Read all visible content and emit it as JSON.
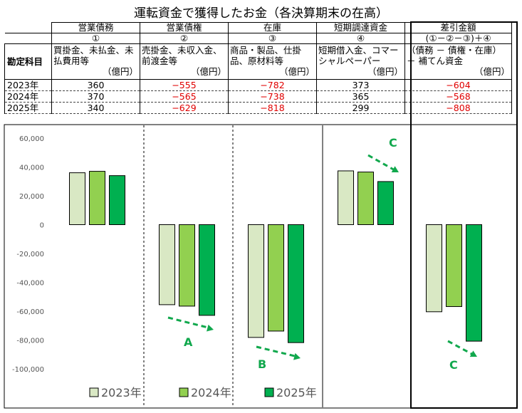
{
  "title": "運転資金で獲得したお金（各決算期末の在高）",
  "table": {
    "row_header": "勘定科目",
    "columns": [
      {
        "name": "営業債務",
        "number": "①",
        "desc": "買掛金、未払金、未払費用等",
        "unit": "（億円）"
      },
      {
        "name": "営業債権",
        "number": "②",
        "desc": "売掛金、未収入金、前渡金等",
        "unit": "（億円）"
      },
      {
        "name": "在庫",
        "number": "③",
        "desc": "商品・製品、仕掛品、原材料等",
        "unit": "（億円）"
      },
      {
        "name": "短期調達資金",
        "number": "④",
        "desc": "短期借入金、コマーシャルペーパー",
        "unit": "（億円）"
      },
      {
        "name": "差引金額",
        "number": "(①－②－③)＋④",
        "desc": "（債務 － 債権・在庫） ＋ 補てん資金",
        "unit": "（億円）"
      }
    ],
    "rows": [
      {
        "year": "2023年",
        "values": [
          "360",
          "−555",
          "−782",
          "373",
          "−604"
        ]
      },
      {
        "year": "2024年",
        "values": [
          "370",
          "−565",
          "−738",
          "365",
          "−568"
        ]
      },
      {
        "year": "2025年",
        "values": [
          "340",
          "−629",
          "−818",
          "299",
          "−808"
        ]
      }
    ]
  },
  "chart_data": {
    "type": "bar",
    "categories": [
      "営業債務",
      "営業債権",
      "在庫",
      "短期調達資金",
      "差引金額"
    ],
    "series": [
      {
        "name": "2023年",
        "color": "#d9e8c4",
        "values": [
          36000,
          -55500,
          -78200,
          37300,
          -60400
        ]
      },
      {
        "name": "2024年",
        "color": "#92d050",
        "values": [
          37000,
          -56500,
          -73800,
          36500,
          -56800
        ]
      },
      {
        "name": "2025年",
        "color": "#00b050",
        "values": [
          34000,
          -62900,
          -81800,
          29900,
          -80800
        ]
      }
    ],
    "ylim": [
      -100000,
      60000
    ],
    "ytick_labels": [
      "60,000",
      "40,000",
      "20,000",
      "0",
      "-20,000",
      "-40,000",
      "-60,000",
      "-80,000",
      "-100,000"
    ],
    "ytick_values": [
      60000,
      40000,
      20000,
      0,
      -20000,
      -40000,
      -60000,
      -80000,
      -100000
    ],
    "negative_tick_color": "#e00000",
    "positive_tick_color": "#555555",
    "annotations": [
      {
        "label": "A",
        "category_index": 1
      },
      {
        "label": "B",
        "category_index": 2
      },
      {
        "label": "C",
        "category_index": 3
      },
      {
        "label": "C",
        "category_index": 4
      }
    ],
    "annotation_color": "#11a84d",
    "legend": [
      "2023年",
      "2024年",
      "2025年"
    ],
    "grid": false
  }
}
